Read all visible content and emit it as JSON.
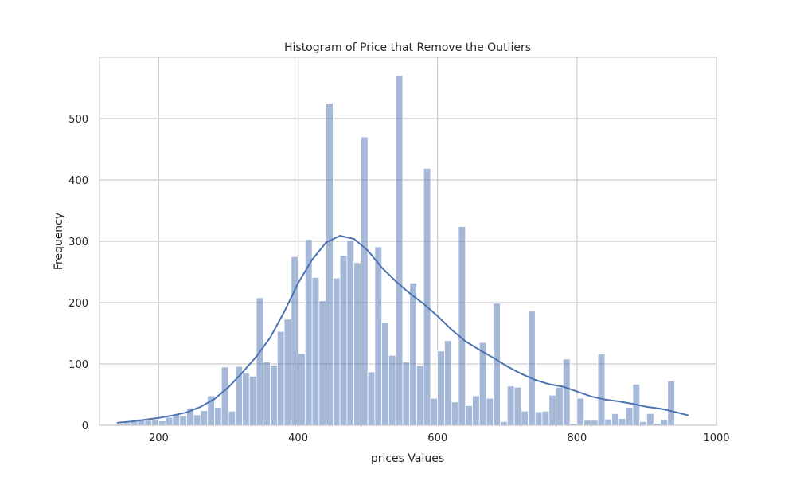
{
  "chart_data": {
    "type": "bar",
    "title": "Histogram of Price that Remove the Outliers",
    "xlabel": "prices Values",
    "ylabel": "Frequency",
    "xlim": [
      115,
      1000
    ],
    "ylim": [
      0,
      600
    ],
    "xticks": [
      200,
      400,
      600,
      800,
      1000
    ],
    "yticks": [
      0,
      100,
      200,
      300,
      400,
      500
    ],
    "grid": true,
    "bar_color": "#4C72B0",
    "bar_alpha": 0.5,
    "kde_color": "#4C72B0",
    "bin_start": 140,
    "bin_width": 10,
    "values": [
      2,
      4,
      6,
      10,
      8,
      9,
      7,
      13,
      18,
      15,
      28,
      17,
      24,
      48,
      29,
      95,
      23,
      96,
      85,
      80,
      208,
      103,
      98,
      153,
      173,
      275,
      117,
      303,
      241,
      203,
      525,
      240,
      277,
      302,
      265,
      470,
      87,
      291,
      167,
      114,
      570,
      103,
      232,
      97,
      419,
      44,
      121,
      138,
      38,
      324,
      32,
      48,
      135,
      44,
      199,
      6,
      64,
      62,
      23,
      186,
      22,
      23,
      49,
      62,
      108,
      3,
      44,
      8,
      8,
      116,
      10,
      19,
      11,
      29,
      67,
      6,
      19,
      3,
      9,
      72
    ],
    "kde": [
      [
        140,
        4
      ],
      [
        160,
        6
      ],
      [
        180,
        9
      ],
      [
        200,
        12
      ],
      [
        220,
        16
      ],
      [
        240,
        21
      ],
      [
        260,
        30
      ],
      [
        280,
        43
      ],
      [
        300,
        62
      ],
      [
        320,
        86
      ],
      [
        340,
        112
      ],
      [
        360,
        143
      ],
      [
        380,
        185
      ],
      [
        400,
        232
      ],
      [
        420,
        270
      ],
      [
        440,
        298
      ],
      [
        460,
        309
      ],
      [
        480,
        304
      ],
      [
        500,
        285
      ],
      [
        520,
        257
      ],
      [
        540,
        235
      ],
      [
        560,
        215
      ],
      [
        580,
        198
      ],
      [
        600,
        178
      ],
      [
        620,
        156
      ],
      [
        640,
        137
      ],
      [
        660,
        123
      ],
      [
        680,
        110
      ],
      [
        700,
        96
      ],
      [
        720,
        84
      ],
      [
        740,
        74
      ],
      [
        760,
        67
      ],
      [
        780,
        63
      ],
      [
        800,
        55
      ],
      [
        820,
        47
      ],
      [
        840,
        42
      ],
      [
        860,
        39
      ],
      [
        880,
        35
      ],
      [
        900,
        30
      ],
      [
        920,
        27
      ],
      [
        940,
        22
      ],
      [
        960,
        16
      ]
    ]
  }
}
